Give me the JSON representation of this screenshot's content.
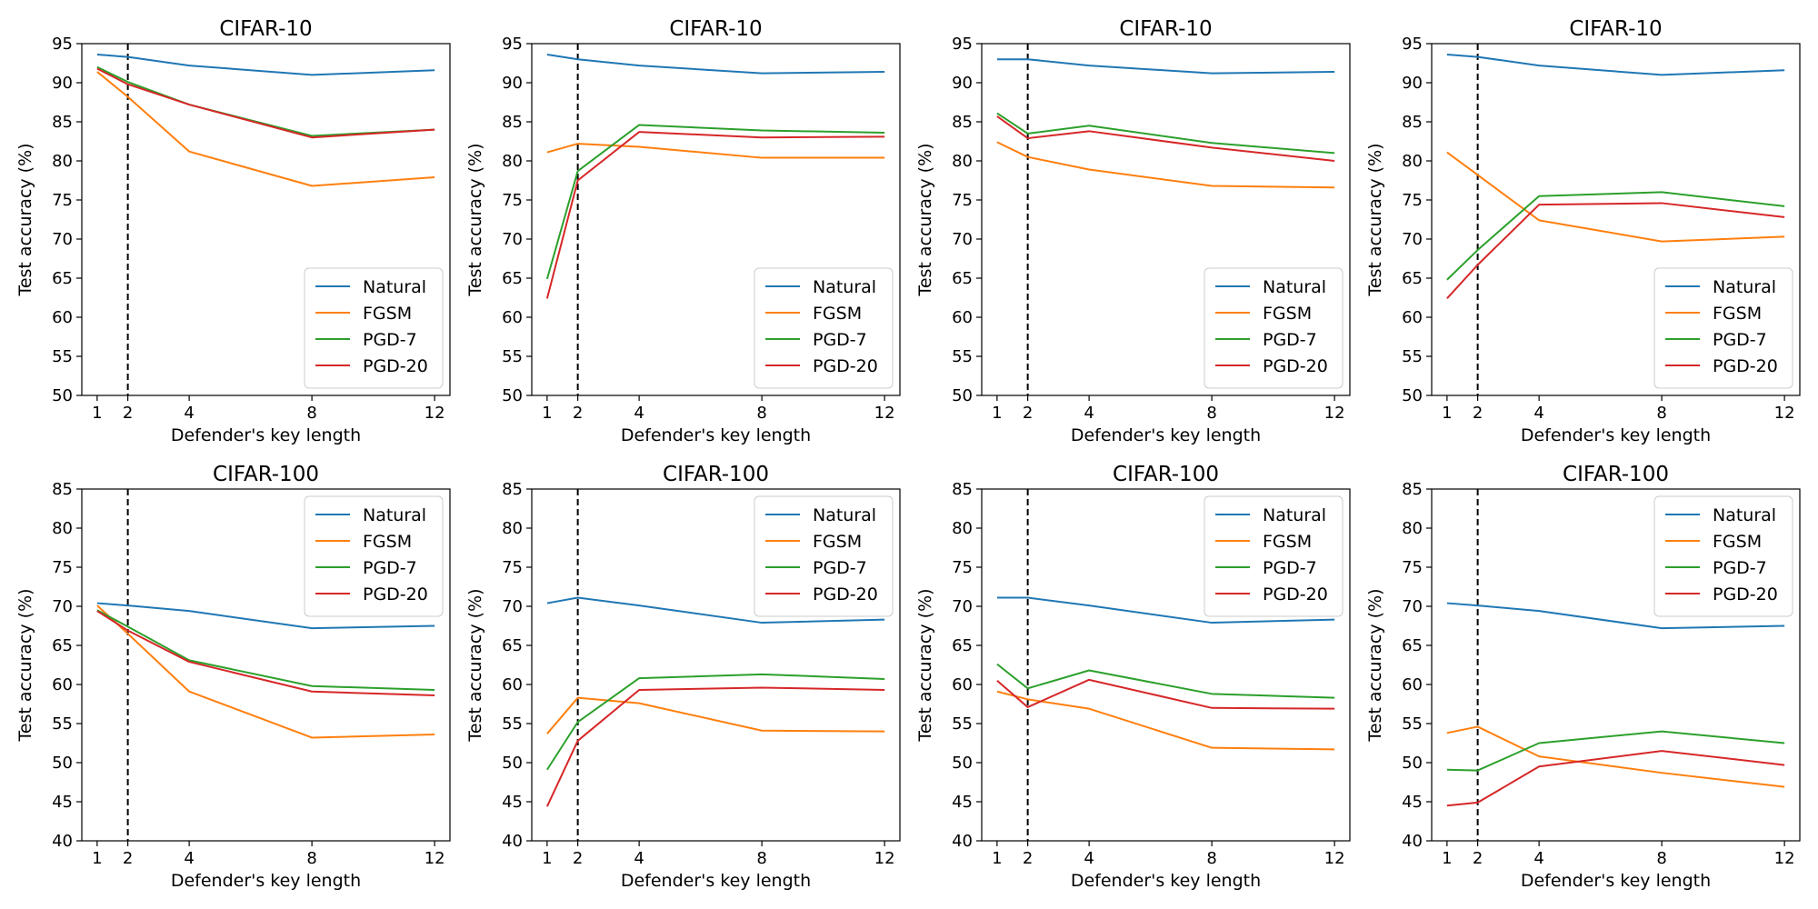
{
  "figure": {
    "legend_location_top_row": "lower-right",
    "legend_location_bottom_row": "upper-right"
  },
  "chart_data": [
    {
      "type": "line",
      "title": "CIFAR-10",
      "xlabel": "Defender's key length",
      "ylabel": "Test accuracy (%)",
      "x": [
        1,
        2,
        4,
        8,
        12
      ],
      "xticks": [
        1,
        2,
        4,
        8,
        12
      ],
      "xlim": [
        0.5,
        12.5
      ],
      "ylim": [
        50,
        95
      ],
      "yticks": [
        50,
        55,
        60,
        65,
        70,
        75,
        80,
        85,
        90,
        95
      ],
      "reference_line_x": 2,
      "legend_position": "lower-right",
      "series": [
        {
          "name": "Natural",
          "color": "#1f77b4",
          "values": [
            93.6,
            93.3,
            92.2,
            91.0,
            91.6
          ]
        },
        {
          "name": "FGSM",
          "color": "#ff7f0e",
          "values": [
            91.4,
            88.2,
            81.2,
            76.8,
            77.9
          ]
        },
        {
          "name": "PGD-7",
          "color": "#2ca02c",
          "values": [
            92.0,
            90.1,
            87.2,
            83.2,
            84.0
          ]
        },
        {
          "name": "PGD-20",
          "color": "#d62728",
          "values": [
            91.8,
            89.8,
            87.2,
            83.0,
            84.0
          ]
        }
      ]
    },
    {
      "type": "line",
      "title": "CIFAR-10",
      "xlabel": "Defender's key length",
      "ylabel": "Test accuracy (%)",
      "x": [
        1,
        2,
        4,
        8,
        12
      ],
      "xticks": [
        1,
        2,
        4,
        8,
        12
      ],
      "xlim": [
        0.5,
        12.5
      ],
      "ylim": [
        50,
        95
      ],
      "yticks": [
        50,
        55,
        60,
        65,
        70,
        75,
        80,
        85,
        90,
        95
      ],
      "reference_line_x": 2,
      "legend_position": "lower-right",
      "series": [
        {
          "name": "Natural",
          "color": "#1f77b4",
          "values": [
            93.6,
            93.0,
            92.2,
            91.2,
            91.4
          ]
        },
        {
          "name": "FGSM",
          "color": "#ff7f0e",
          "values": [
            81.1,
            82.2,
            81.8,
            80.4,
            80.4
          ]
        },
        {
          "name": "PGD-7",
          "color": "#2ca02c",
          "values": [
            64.9,
            78.7,
            84.6,
            83.9,
            83.6
          ]
        },
        {
          "name": "PGD-20",
          "color": "#d62728",
          "values": [
            62.4,
            77.5,
            83.7,
            83.0,
            83.1
          ]
        }
      ]
    },
    {
      "type": "line",
      "title": "CIFAR-10",
      "xlabel": "Defender's key length",
      "ylabel": "Test accuracy (%)",
      "x": [
        1,
        2,
        4,
        8,
        12
      ],
      "xticks": [
        1,
        2,
        4,
        8,
        12
      ],
      "xlim": [
        0.5,
        12.5
      ],
      "ylim": [
        50,
        95
      ],
      "yticks": [
        50,
        55,
        60,
        65,
        70,
        75,
        80,
        85,
        90,
        95
      ],
      "reference_line_x": 2,
      "legend_position": "lower-right",
      "series": [
        {
          "name": "Natural",
          "color": "#1f77b4",
          "values": [
            93.0,
            93.0,
            92.2,
            91.2,
            91.4
          ]
        },
        {
          "name": "FGSM",
          "color": "#ff7f0e",
          "values": [
            82.4,
            80.5,
            78.9,
            76.8,
            76.6
          ]
        },
        {
          "name": "PGD-7",
          "color": "#2ca02c",
          "values": [
            86.1,
            83.5,
            84.5,
            82.3,
            81.0
          ]
        },
        {
          "name": "PGD-20",
          "color": "#d62728",
          "values": [
            85.7,
            82.9,
            83.8,
            81.7,
            80.0
          ]
        }
      ]
    },
    {
      "type": "line",
      "title": "CIFAR-10",
      "xlabel": "Defender's key length",
      "ylabel": "Test accuracy (%)",
      "x": [
        1,
        2,
        4,
        8,
        12
      ],
      "xticks": [
        1,
        2,
        4,
        8,
        12
      ],
      "xlim": [
        0.5,
        12.5
      ],
      "ylim": [
        50,
        95
      ],
      "yticks": [
        50,
        55,
        60,
        65,
        70,
        75,
        80,
        85,
        90,
        95
      ],
      "reference_line_x": 2,
      "legend_position": "lower-right",
      "series": [
        {
          "name": "Natural",
          "color": "#1f77b4",
          "values": [
            93.6,
            93.3,
            92.2,
            91.0,
            91.6
          ]
        },
        {
          "name": "FGSM",
          "color": "#ff7f0e",
          "values": [
            81.1,
            78.2,
            72.4,
            69.7,
            70.3
          ]
        },
        {
          "name": "PGD-7",
          "color": "#2ca02c",
          "values": [
            64.8,
            68.6,
            75.5,
            76.0,
            74.2
          ]
        },
        {
          "name": "PGD-20",
          "color": "#d62728",
          "values": [
            62.4,
            66.7,
            74.4,
            74.6,
            72.8
          ]
        }
      ]
    },
    {
      "type": "line",
      "title": "CIFAR-100",
      "xlabel": "Defender's key length",
      "ylabel": "Test accuracy (%)",
      "x": [
        1,
        2,
        4,
        8,
        12
      ],
      "xticks": [
        1,
        2,
        4,
        8,
        12
      ],
      "xlim": [
        0.5,
        12.5
      ],
      "ylim": [
        40,
        85
      ],
      "yticks": [
        40,
        45,
        50,
        55,
        60,
        65,
        70,
        75,
        80,
        85
      ],
      "reference_line_x": 2,
      "legend_position": "upper-right",
      "series": [
        {
          "name": "Natural",
          "color": "#1f77b4",
          "values": [
            70.4,
            70.1,
            69.4,
            67.2,
            67.5
          ]
        },
        {
          "name": "FGSM",
          "color": "#ff7f0e",
          "values": [
            70.1,
            66.5,
            59.1,
            53.2,
            53.6
          ]
        },
        {
          "name": "PGD-7",
          "color": "#2ca02c",
          "values": [
            69.5,
            67.4,
            63.1,
            59.8,
            59.3
          ]
        },
        {
          "name": "PGD-20",
          "color": "#d62728",
          "values": [
            69.4,
            66.9,
            62.9,
            59.1,
            58.6
          ]
        }
      ]
    },
    {
      "type": "line",
      "title": "CIFAR-100",
      "xlabel": "Defender's key length",
      "ylabel": "Test accuracy (%)",
      "x": [
        1,
        2,
        4,
        8,
        12
      ],
      "xticks": [
        1,
        2,
        4,
        8,
        12
      ],
      "xlim": [
        0.5,
        12.5
      ],
      "ylim": [
        40,
        85
      ],
      "yticks": [
        40,
        45,
        50,
        55,
        60,
        65,
        70,
        75,
        80,
        85
      ],
      "reference_line_x": 2,
      "legend_position": "upper-right",
      "series": [
        {
          "name": "Natural",
          "color": "#1f77b4",
          "values": [
            70.4,
            71.1,
            70.1,
            67.9,
            68.3
          ]
        },
        {
          "name": "FGSM",
          "color": "#ff7f0e",
          "values": [
            53.7,
            58.3,
            57.6,
            54.1,
            54.0
          ]
        },
        {
          "name": "PGD-7",
          "color": "#2ca02c",
          "values": [
            49.1,
            55.2,
            60.8,
            61.3,
            60.7
          ]
        },
        {
          "name": "PGD-20",
          "color": "#d62728",
          "values": [
            44.4,
            52.8,
            59.3,
            59.6,
            59.3
          ]
        }
      ]
    },
    {
      "type": "line",
      "title": "CIFAR-100",
      "xlabel": "Defender's key length",
      "ylabel": "Test accuracy (%)",
      "x": [
        1,
        2,
        4,
        8,
        12
      ],
      "xticks": [
        1,
        2,
        4,
        8,
        12
      ],
      "xlim": [
        0.5,
        12.5
      ],
      "ylim": [
        40,
        85
      ],
      "yticks": [
        40,
        45,
        50,
        55,
        60,
        65,
        70,
        75,
        80,
        85
      ],
      "reference_line_x": 2,
      "legend_position": "upper-right",
      "series": [
        {
          "name": "Natural",
          "color": "#1f77b4",
          "values": [
            71.1,
            71.1,
            70.1,
            67.9,
            68.3
          ]
        },
        {
          "name": "FGSM",
          "color": "#ff7f0e",
          "values": [
            59.1,
            58.1,
            56.9,
            51.9,
            51.7
          ]
        },
        {
          "name": "PGD-7",
          "color": "#2ca02c",
          "values": [
            62.6,
            59.5,
            61.8,
            58.8,
            58.3
          ]
        },
        {
          "name": "PGD-20",
          "color": "#d62728",
          "values": [
            60.5,
            57.1,
            60.6,
            57.0,
            56.9
          ]
        }
      ]
    },
    {
      "type": "line",
      "title": "CIFAR-100",
      "xlabel": "Defender's key length",
      "ylabel": "Test accuracy (%)",
      "x": [
        1,
        2,
        4,
        8,
        12
      ],
      "xticks": [
        1,
        2,
        4,
        8,
        12
      ],
      "xlim": [
        0.5,
        12.5
      ],
      "ylim": [
        40,
        85
      ],
      "yticks": [
        40,
        45,
        50,
        55,
        60,
        65,
        70,
        75,
        80,
        85
      ],
      "reference_line_x": 2,
      "legend_position": "upper-right",
      "series": [
        {
          "name": "Natural",
          "color": "#1f77b4",
          "values": [
            70.4,
            70.1,
            69.4,
            67.2,
            67.5
          ]
        },
        {
          "name": "FGSM",
          "color": "#ff7f0e",
          "values": [
            53.8,
            54.6,
            50.8,
            48.7,
            46.9
          ]
        },
        {
          "name": "PGD-7",
          "color": "#2ca02c",
          "values": [
            49.1,
            49.0,
            52.5,
            54.0,
            52.5
          ]
        },
        {
          "name": "PGD-20",
          "color": "#d62728",
          "values": [
            44.5,
            44.9,
            49.5,
            51.5,
            49.7
          ]
        }
      ]
    }
  ]
}
